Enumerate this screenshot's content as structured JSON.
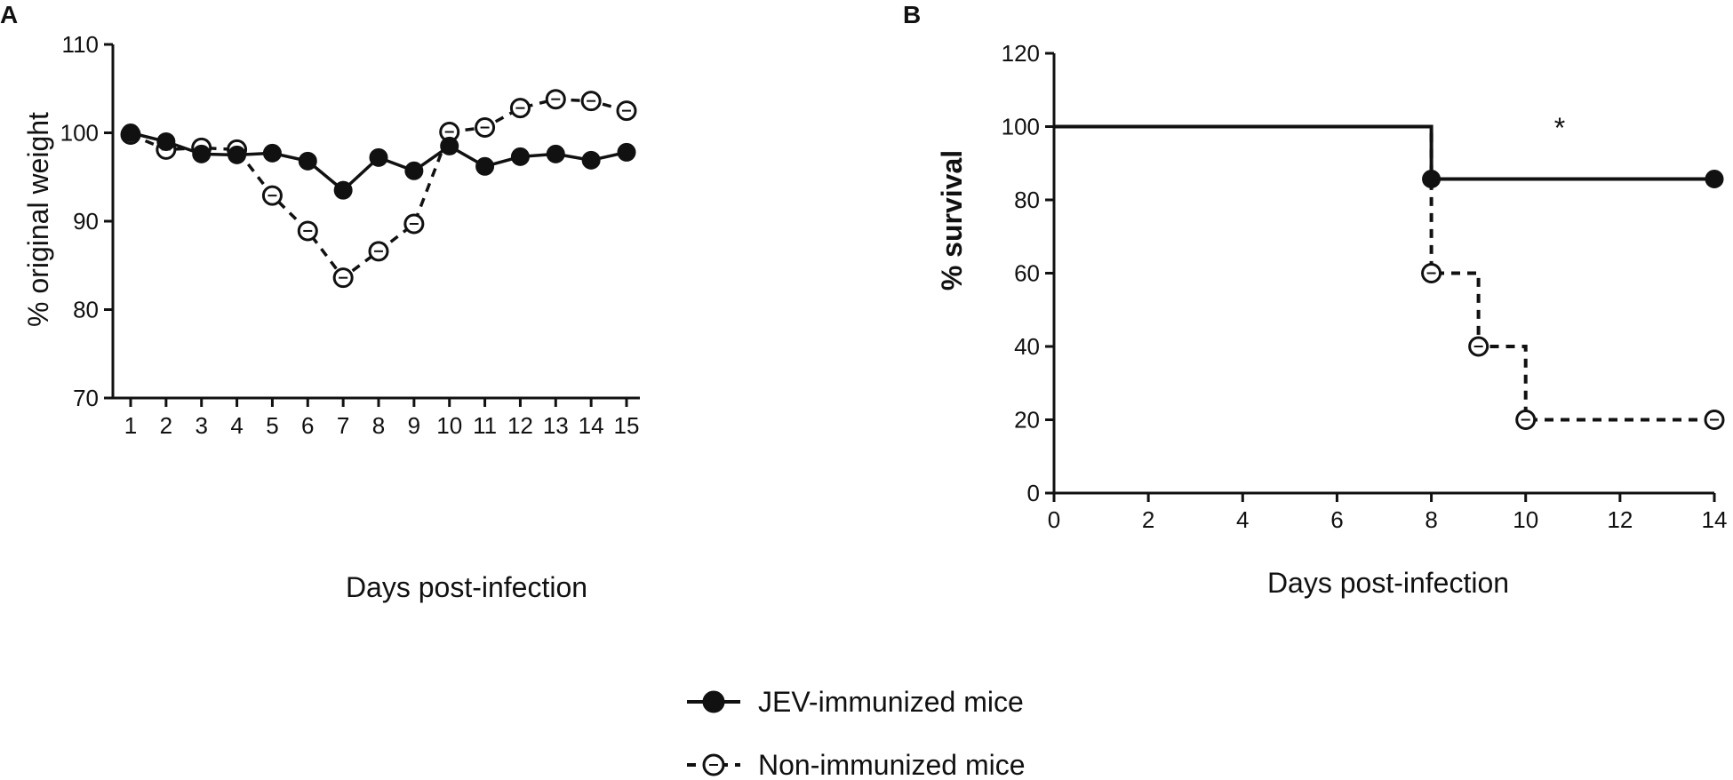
{
  "chart_data": [
    {
      "panel": "A",
      "type": "line",
      "xlabel": "Days post-infection",
      "ylabel": "% original weight",
      "xlim": [
        1,
        15
      ],
      "ylim": [
        70,
        110
      ],
      "xticks": [
        "1",
        "2",
        "3",
        "4",
        "5",
        "6",
        "7",
        "8",
        "9",
        "10",
        "11",
        "12",
        "13",
        "14",
        "15"
      ],
      "yticks": [
        "70",
        "80",
        "90",
        "100",
        "110"
      ],
      "x": [
        1,
        2,
        3,
        4,
        5,
        6,
        7,
        8,
        9,
        10,
        11,
        12,
        13,
        14,
        15
      ],
      "series": [
        {
          "name": "JEV-immunized mice",
          "style": "solid-filled",
          "values": [
            100,
            99,
            97.6,
            97.5,
            97.7,
            96.8,
            93.5,
            97.2,
            95.7,
            98.5,
            96.2,
            97.3,
            97.6,
            96.9,
            97.8
          ]
        },
        {
          "name": "Non-immunized mice",
          "style": "dashed-open",
          "values": [
            99.8,
            98.1,
            98.3,
            98.1,
            92.9,
            88.9,
            83.6,
            86.6,
            89.7,
            100.1,
            100.6,
            102.8,
            103.8,
            103.6,
            102.5
          ]
        }
      ]
    },
    {
      "panel": "B",
      "type": "line",
      "subtype": "survival-step",
      "xlabel": "Days post-infection",
      "ylabel": "% survival",
      "xlim": [
        0,
        14
      ],
      "ylim": [
        0,
        120
      ],
      "xticks": [
        "0",
        "2",
        "4",
        "6",
        "8",
        "10",
        "12",
        "14"
      ],
      "yticks": [
        "0",
        "20",
        "40",
        "60",
        "80",
        "100",
        "120"
      ],
      "annotation": "*",
      "series": [
        {
          "name": "JEV-immunized mice",
          "style": "solid-filled",
          "steps": [
            [
              0,
              100
            ],
            [
              8,
              85.7
            ],
            [
              14,
              85.7
            ]
          ],
          "markers": [
            [
              8,
              85.7
            ],
            [
              14,
              85.7
            ]
          ]
        },
        {
          "name": "Non-immunized mice",
          "style": "dashed-open",
          "steps": [
            [
              0,
              100
            ],
            [
              8,
              60
            ],
            [
              9,
              40
            ],
            [
              10,
              20
            ],
            [
              14,
              20
            ]
          ],
          "markers": [
            [
              8,
              60
            ],
            [
              9,
              40
            ],
            [
              10,
              20
            ],
            [
              14,
              20
            ]
          ]
        }
      ]
    }
  ],
  "legend": [
    {
      "label": "JEV-immunized mice",
      "style": "solid-filled"
    },
    {
      "label": "Non-immunized mice",
      "style": "dashed-open"
    }
  ]
}
